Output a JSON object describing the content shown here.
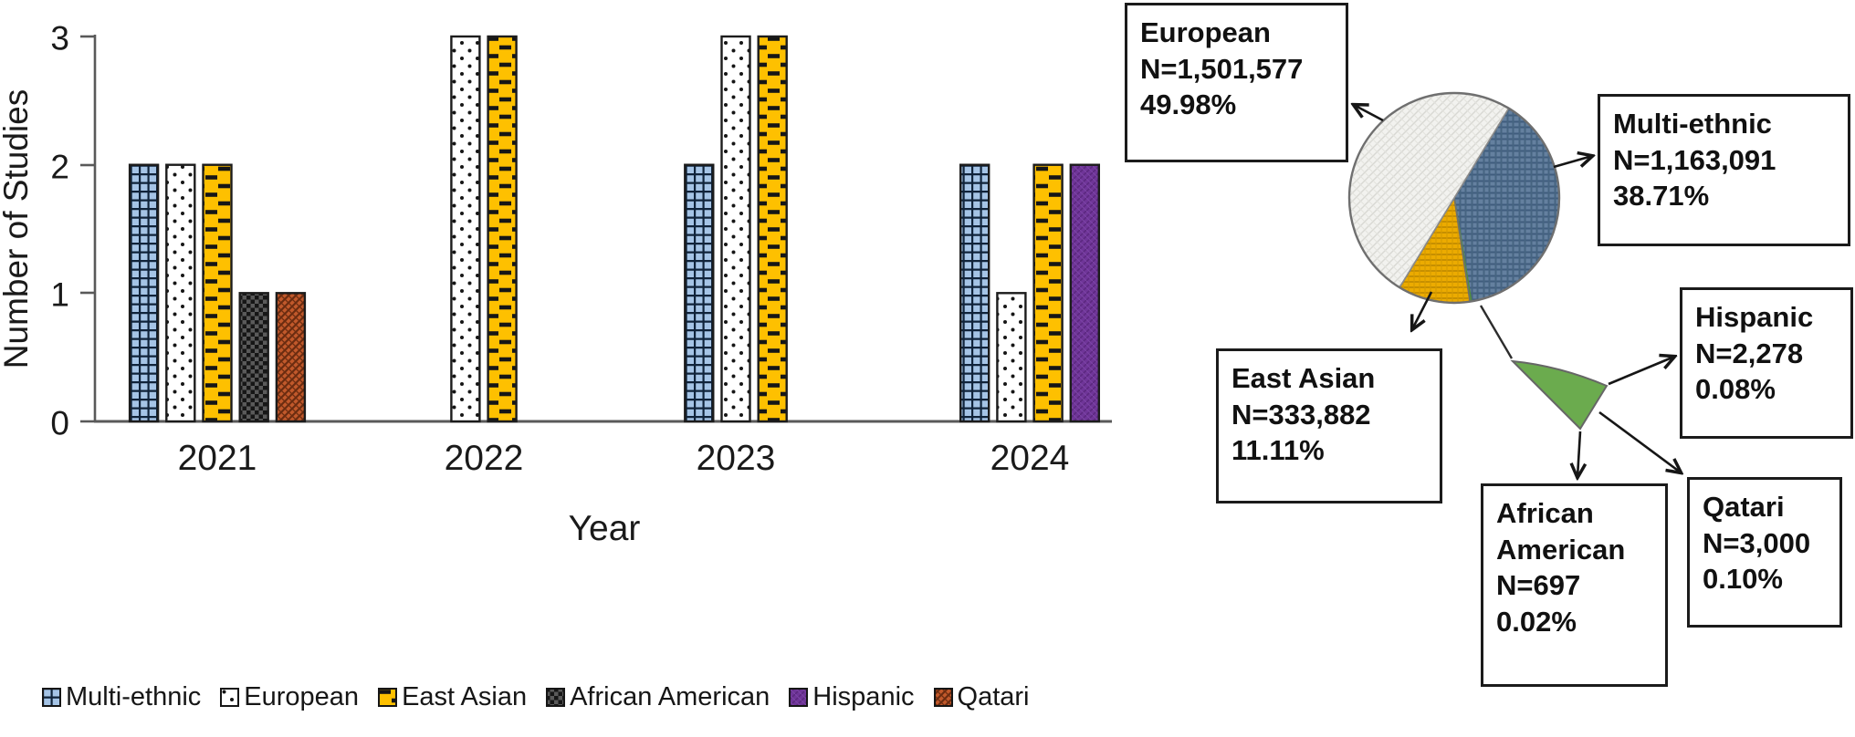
{
  "figure_type": "composite-bar-and-pie",
  "chart_data": [
    {
      "type": "bar",
      "title": "",
      "xlabel": "Year",
      "ylabel": "Number of Studies",
      "ylim": [
        0,
        3
      ],
      "yticks": [
        "0",
        "1",
        "2",
        "3"
      ],
      "categories": [
        "2021",
        "2022",
        "2023",
        "2024"
      ],
      "series": [
        {
          "name": "Multi-ethnic",
          "values": [
            2,
            0,
            2,
            2
          ]
        },
        {
          "name": "European",
          "values": [
            2,
            3,
            3,
            1
          ]
        },
        {
          "name": "East Asian",
          "values": [
            2,
            3,
            3,
            2
          ]
        },
        {
          "name": "African American",
          "values": [
            1,
            0,
            0,
            0
          ]
        },
        {
          "name": "Hispanic",
          "values": [
            0,
            0,
            0,
            2
          ]
        },
        {
          "name": "Qatari",
          "values": [
            1,
            0,
            0,
            0
          ]
        }
      ],
      "grid": false,
      "legend_position": "bottom",
      "note": "Series with value 0 in a year are omitted from that group (bars are centered on the year tick)."
    },
    {
      "type": "pie",
      "slices": [
        {
          "label": "European",
          "n": "1,501,577",
          "pct": 49.98
        },
        {
          "label": "Multi-ethnic",
          "n": "1,163,091",
          "pct": 38.71
        },
        {
          "label": "East Asian",
          "n": "333,882",
          "pct": 11.11
        },
        {
          "label": "Qatari",
          "n": "3,000",
          "pct": 0.1
        },
        {
          "label": "Hispanic",
          "n": "2,278",
          "pct": 0.08
        },
        {
          "label": "African American",
          "n": "697",
          "pct": 0.02
        }
      ],
      "clockwise_order_from_top": [
        "Multi-ethnic",
        "small-groups-green",
        "East Asian",
        "European"
      ],
      "start_angle_cw_from_top_deg": 31.3,
      "detail_wedge": "small green wedge (Hispanic + African American + Qatari, 0.20%) shown enlarged below the pie"
    }
  ],
  "callouts": {
    "european": {
      "lines": [
        "European",
        "N=1,501,577",
        "49.98%"
      ]
    },
    "multi_ethnic": {
      "lines": [
        "Multi-ethnic",
        "N=1,163,091",
        "38.71%"
      ]
    },
    "east_asian": {
      "lines": [
        "East Asian",
        "N=333,882",
        "11.11%"
      ]
    },
    "hispanic": {
      "lines": [
        "Hispanic",
        "N=2,278",
        "0.08%"
      ]
    },
    "african_american": {
      "lines": [
        "African",
        "American",
        "N=697",
        "0.02%"
      ]
    },
    "qatari": {
      "lines": [
        "Qatari",
        "N=3,000",
        "0.10%"
      ]
    }
  },
  "legend": {
    "items": [
      {
        "label": "Multi-ethnic",
        "swatch": "blue-grid-pattern"
      },
      {
        "label": "European",
        "swatch": "white-dot-pattern"
      },
      {
        "label": "East Asian",
        "swatch": "gold-dash-pattern"
      },
      {
        "label": "African American",
        "swatch": "dark-checker-pattern"
      },
      {
        "label": "Hispanic",
        "swatch": "purple-pattern"
      },
      {
        "label": "Qatari",
        "swatch": "orange-weave-pattern"
      }
    ]
  },
  "colors": {
    "multi_ethnic_blue": "#a5c4e6",
    "european_white": "#ffffff",
    "east_asian_gold": "#fec000",
    "african_american_dark": "#161616",
    "hispanic_purple": "#6f3598",
    "qatari_orange": "#c2592b",
    "small_groups_green": "#6bab4e",
    "pie_multi_blue": "#64809f",
    "pie_european_light": "#f2f2ef",
    "pie_east_gold": "#ecab00",
    "axis_gray": "#595959",
    "text_dark": "#1a1a1a"
  }
}
